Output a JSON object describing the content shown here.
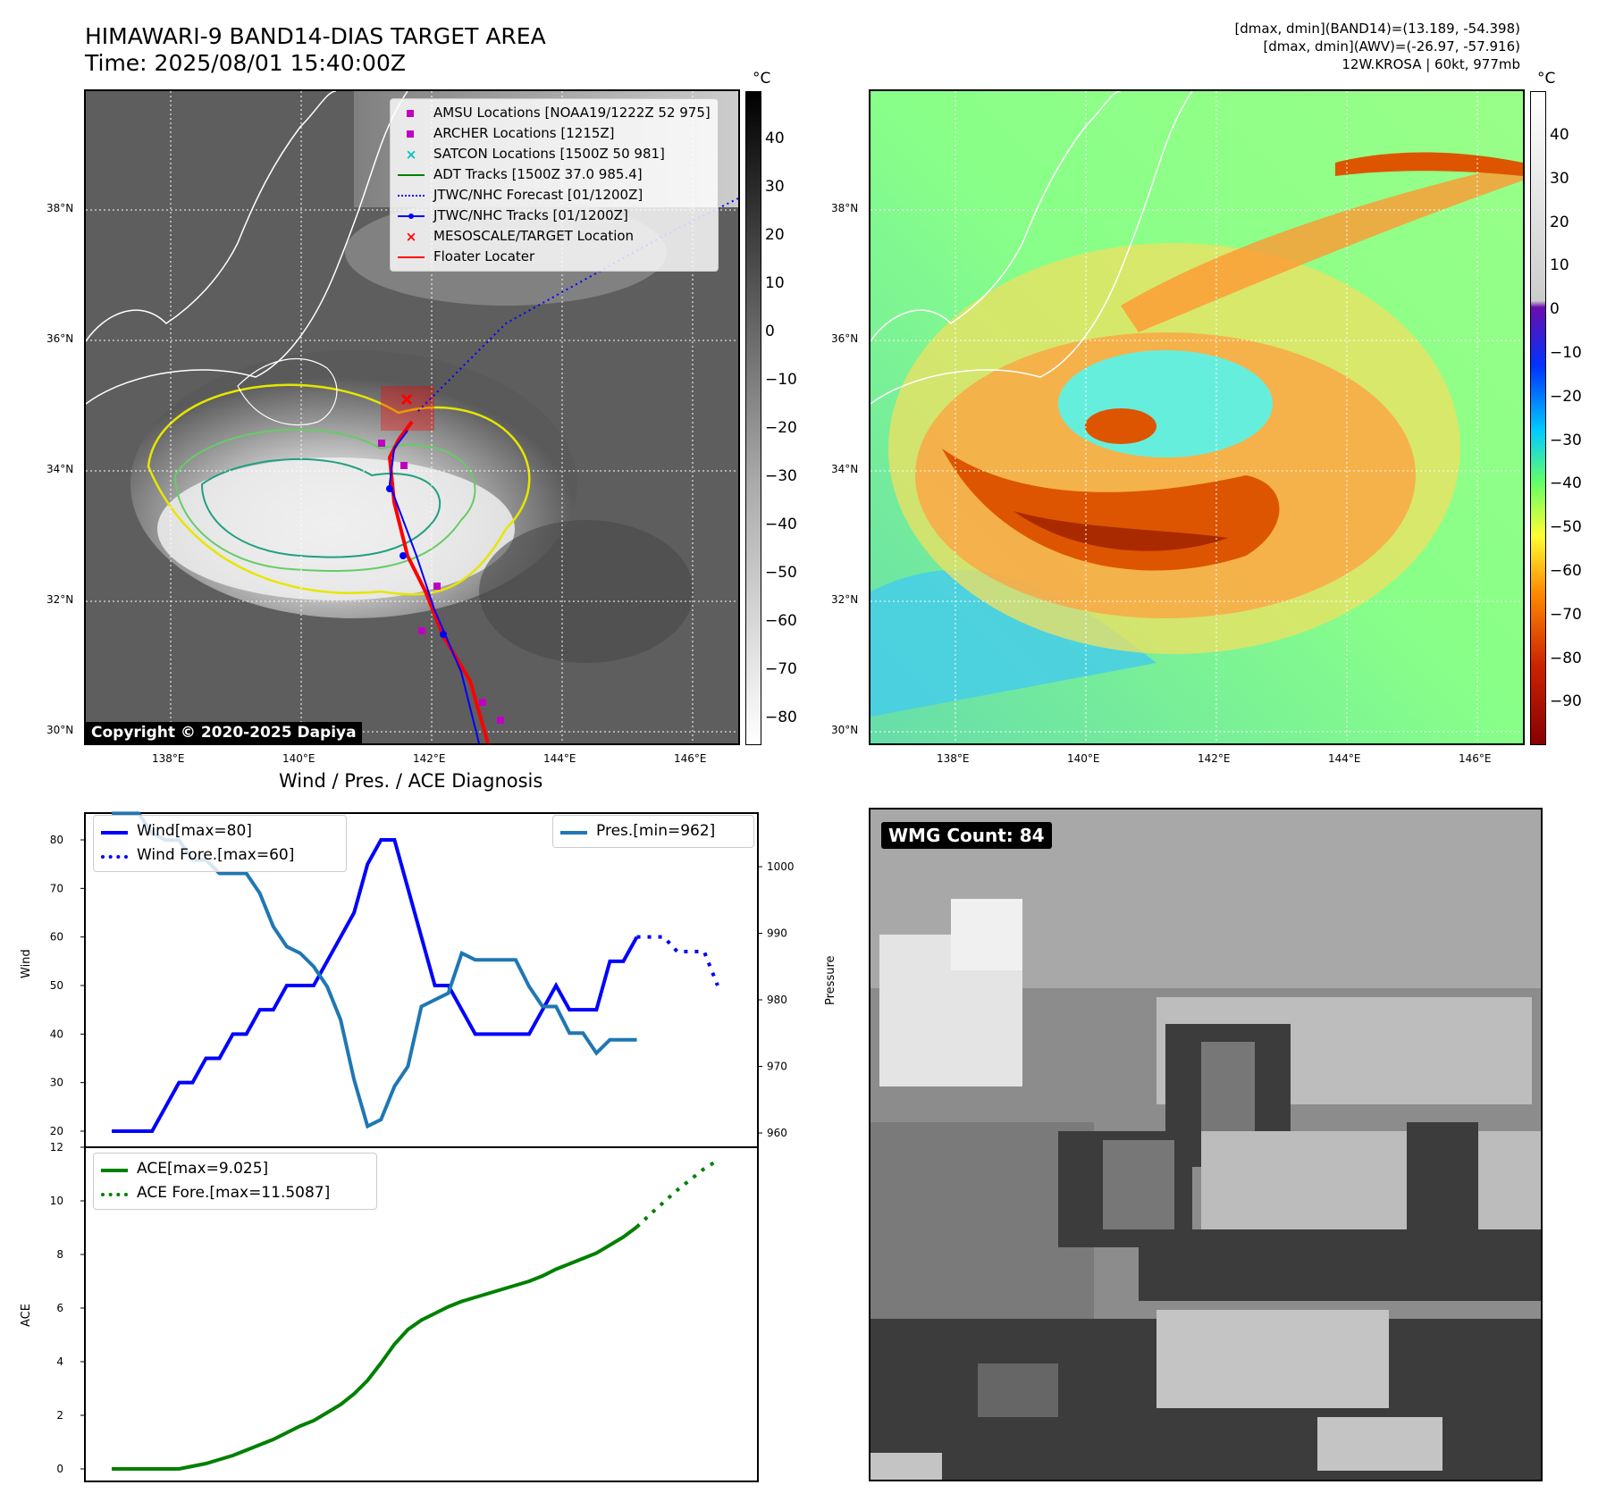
{
  "header": {
    "title_line1": "HIMAWARI-9 BAND14-DIAS TARGET AREA",
    "title_line2": "Time: 2025/08/01 15:40:00Z",
    "info_line1": "[dmax, dmin](BAND14)=(13.189, -54.398)",
    "info_line2": "[dmax, dmin](AWV)=(-26.97, -57.916)",
    "info_line3": "12W.KROSA | 60kt, 977mb"
  },
  "map": {
    "lat_ticks": [
      "38°N",
      "36°N",
      "34°N",
      "32°N",
      "30°N"
    ],
    "lon_ticks": [
      "138°E",
      "140°E",
      "142°E",
      "144°E",
      "146°E"
    ],
    "copyright": "Copyright © 2020-2025 Dapiya",
    "unit": "°C",
    "gray_cbar_ticks": [
      "40",
      "30",
      "20",
      "10",
      "0",
      "−10",
      "−20",
      "−30",
      "−40",
      "−50",
      "−60",
      "−70",
      "−80"
    ],
    "color_cbar_ticks": [
      "40",
      "30",
      "20",
      "10",
      "0",
      "−10",
      "−20",
      "−30",
      "−40",
      "−50",
      "−60",
      "−70",
      "−80",
      "−90"
    ],
    "legend": [
      {
        "label": "AMSU Locations [NOAA19/1222Z 52 975]",
        "color": "#c000c0",
        "marker": "square"
      },
      {
        "label": "ARCHER Locations [1215Z]",
        "color": "#c000c0",
        "marker": "square"
      },
      {
        "label": "SATCON Locations [1500Z 50 981]",
        "color": "#00c0c0",
        "marker": "x"
      },
      {
        "label": "ADT Tracks [1500Z 37.0 985.4]",
        "color": "#008000",
        "marker": "line"
      },
      {
        "label": "JTWC/NHC Forecast [01/1200Z]",
        "color": "#0000ff",
        "marker": "dotted"
      },
      {
        "label": "JTWC/NHC Tracks [01/1200Z]",
        "color": "#0000ff",
        "marker": "line-dot"
      },
      {
        "label": "MESOSCALE/TARGET Location",
        "color": "#ff0000",
        "marker": "x"
      },
      {
        "label": "Floater Locater",
        "color": "#ff0000",
        "marker": "line"
      }
    ]
  },
  "diag": {
    "title": "Wind / Pres. / ACE Diagnosis",
    "wmg_label": "WMG Count: 84",
    "wind_ylabel": "Wind",
    "pres_ylabel": "Pressure",
    "ace_ylabel": "ACE",
    "legend_wind": "Wind[max=80]",
    "legend_wind_fore": "Wind Fore.[max=60]",
    "legend_pres": "Pres.[min=962]",
    "legend_ace": "ACE[max=9.025]",
    "legend_ace_fore": "ACE Fore.[max=11.5087]",
    "wind_ticks": [
      "80",
      "70",
      "60",
      "50",
      "40",
      "30",
      "20"
    ],
    "pres_ticks": [
      "1000",
      "990",
      "980",
      "970",
      "960"
    ],
    "ace_ticks": [
      "12",
      "10",
      "8",
      "6",
      "4",
      "2",
      "0"
    ]
  },
  "chart_data": [
    {
      "type": "line",
      "title": "Wind / Pres. / ACE Diagnosis",
      "ylabel": "Wind",
      "ylim": [
        18,
        82
      ],
      "x": [
        0,
        1,
        2,
        3,
        4,
        5,
        6,
        7,
        8,
        9,
        10,
        11,
        12,
        13,
        14,
        15,
        16,
        17,
        18,
        19,
        20,
        21,
        22,
        23,
        24,
        25,
        26,
        27,
        28,
        29,
        30,
        31,
        32,
        33,
        34,
        35,
        36,
        37,
        38,
        39,
        40
      ],
      "series": [
        {
          "name": "Wind[max=80]",
          "color": "#0000ff",
          "values": [
            20,
            20,
            20,
            20,
            25,
            30,
            30,
            35,
            35,
            40,
            40,
            45,
            45,
            50,
            50,
            50,
            55,
            60,
            65,
            75,
            80,
            80,
            70,
            60,
            50,
            50,
            45,
            40,
            40,
            40,
            40,
            40,
            45,
            50,
            45,
            45,
            45,
            55,
            55,
            60,
            null
          ]
        }
      ]
    },
    {
      "type": "line",
      "ylabel": "Wind",
      "series": [
        {
          "name": "Wind Fore.[max=60]",
          "color": "#0000ff",
          "style": "dotted",
          "x": [
            39,
            40,
            41,
            42,
            43,
            44,
            45
          ],
          "values": [
            60,
            60,
            60,
            57,
            57,
            57,
            50
          ]
        }
      ]
    },
    {
      "type": "line",
      "ylabel": "Pressure",
      "ylim": [
        960,
        1009
      ],
      "x": [
        0,
        1,
        2,
        3,
        4,
        5,
        6,
        7,
        8,
        9,
        10,
        11,
        12,
        13,
        14,
        15,
        16,
        17,
        18,
        19,
        20,
        21,
        22,
        23,
        24,
        25,
        26,
        27,
        28,
        29,
        30,
        31,
        32,
        33,
        34,
        35,
        36,
        37,
        38,
        39
      ],
      "series": [
        {
          "name": "Pres.[min=962]",
          "color": "#1f77b4",
          "values": [
            1008,
            1008,
            1008,
            1005,
            1004,
            1004,
            1001,
            1001,
            999,
            999,
            999,
            996,
            991,
            988,
            987,
            985,
            982,
            977,
            968,
            961,
            962,
            967,
            970,
            979,
            980,
            981,
            987,
            986,
            986,
            986,
            986,
            982,
            979,
            979,
            975,
            975,
            972,
            974,
            974,
            974
          ]
        }
      ]
    },
    {
      "type": "line",
      "ylabel": "ACE",
      "ylim": [
        0,
        12
      ],
      "x": [
        0,
        1,
        2,
        3,
        4,
        5,
        6,
        7,
        8,
        9,
        10,
        11,
        12,
        13,
        14,
        15,
        16,
        17,
        18,
        19,
        20,
        21,
        22,
        23,
        24,
        25,
        26,
        27,
        28,
        29,
        30,
        31,
        32,
        33,
        34,
        35,
        36,
        37,
        38,
        39
      ],
      "series": [
        {
          "name": "ACE[max=9.025]",
          "color": "#008000",
          "values": [
            0,
            0,
            0,
            0,
            0,
            0,
            0.1,
            0.2,
            0.35,
            0.5,
            0.7,
            0.9,
            1.1,
            1.35,
            1.6,
            1.8,
            2.1,
            2.4,
            2.8,
            3.3,
            3.95,
            4.65,
            5.2,
            5.55,
            5.8,
            6.05,
            6.25,
            6.4,
            6.55,
            6.7,
            6.85,
            7.0,
            7.2,
            7.45,
            7.65,
            7.85,
            8.05,
            8.35,
            8.65,
            9.025
          ]
        }
      ]
    },
    {
      "type": "line",
      "ylabel": "ACE",
      "series": [
        {
          "name": "ACE Fore.[max=11.5087]",
          "color": "#008000",
          "style": "dotted",
          "x": [
            39,
            40,
            41,
            42,
            43,
            44,
            45
          ],
          "values": [
            9.025,
            9.5,
            9.95,
            10.4,
            10.8,
            11.2,
            11.5087
          ]
        }
      ]
    }
  ]
}
